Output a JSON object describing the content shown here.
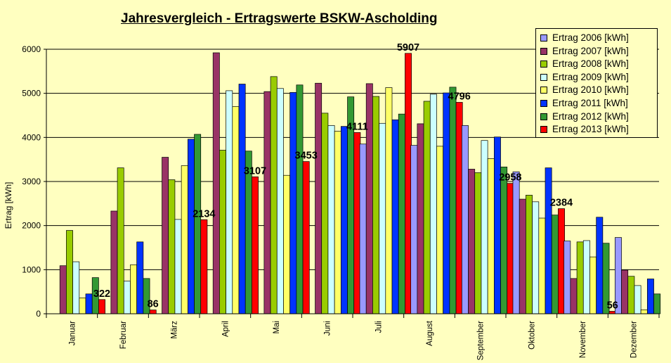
{
  "chart_data": {
    "type": "bar",
    "title": "Jahresvergleich - Ertragswerte BSKW-Ascholding",
    "ylabel": "Ertrag [kWh]",
    "xlabel": "",
    "ylim": [
      0,
      6000
    ],
    "yticks": [
      0,
      1000,
      2000,
      3000,
      4000,
      5000,
      6000
    ],
    "grid": true,
    "legend_position": "top-right",
    "categories": [
      "Januar",
      "Februar",
      "März",
      "April",
      "Mai",
      "Juni",
      "Juli",
      "August",
      "September",
      "Oktober",
      "November",
      "Dezember"
    ],
    "series": [
      {
        "name": "Ertrag 2006 [kWh]",
        "color": "#9999FF",
        "values": [
          null,
          null,
          null,
          null,
          null,
          null,
          3850,
          3820,
          4270,
          3220,
          1650,
          1730
        ]
      },
      {
        "name": "Ertrag 2007 [kWh]",
        "color": "#993366",
        "values": [
          1090,
          2330,
          3550,
          5920,
          5040,
          5230,
          5220,
          4310,
          3280,
          2600,
          800,
          990
        ]
      },
      {
        "name": "Ertrag 2008 [kWh]",
        "color": "#99CC00",
        "values": [
          1890,
          3310,
          3040,
          3710,
          5380,
          4550,
          4930,
          4820,
          3200,
          2690,
          1630,
          850
        ]
      },
      {
        "name": "Ertrag 2009 [kWh]",
        "color": "#CCFFFF",
        "values": [
          1180,
          740,
          2140,
          5060,
          5110,
          4270,
          4320,
          4980,
          3930,
          2540,
          1660,
          640
        ]
      },
      {
        "name": "Ertrag 2010 [kWh]",
        "color": "#FFFF66",
        "values": [
          360,
          1110,
          3360,
          4700,
          3140,
          4140,
          5130,
          3800,
          3520,
          2170,
          1290,
          90
        ]
      },
      {
        "name": "Ertrag 2011 [kWh]",
        "color": "#0033FF",
        "values": [
          450,
          1630,
          3960,
          5210,
          5020,
          4250,
          4400,
          5010,
          4010,
          3310,
          2190,
          790
        ]
      },
      {
        "name": "Ertrag 2012 [kWh]",
        "color": "#339933",
        "values": [
          820,
          800,
          4070,
          3690,
          5190,
          4920,
          4530,
          5140,
          3330,
          2240,
          1600,
          450
        ]
      },
      {
        "name": "Ertrag 2013 [kWh]",
        "color": "#FF0000",
        "values": [
          322,
          86,
          2134,
          3107,
          3453,
          4111,
          5907,
          4796,
          2958,
          2384,
          56,
          null
        ]
      }
    ],
    "data_labels": [
      {
        "category": "Januar",
        "text": "322"
      },
      {
        "category": "Februar",
        "text": "86"
      },
      {
        "category": "März",
        "text": "2134"
      },
      {
        "category": "April",
        "text": "3107"
      },
      {
        "category": "Mai",
        "text": "3453"
      },
      {
        "category": "Juni",
        "text": "4111"
      },
      {
        "category": "Juli",
        "text": "5907"
      },
      {
        "category": "August",
        "text": "4796"
      },
      {
        "category": "September",
        "text": "2958"
      },
      {
        "category": "Oktober",
        "text": "2384"
      },
      {
        "category": "November",
        "text": "56"
      }
    ]
  }
}
